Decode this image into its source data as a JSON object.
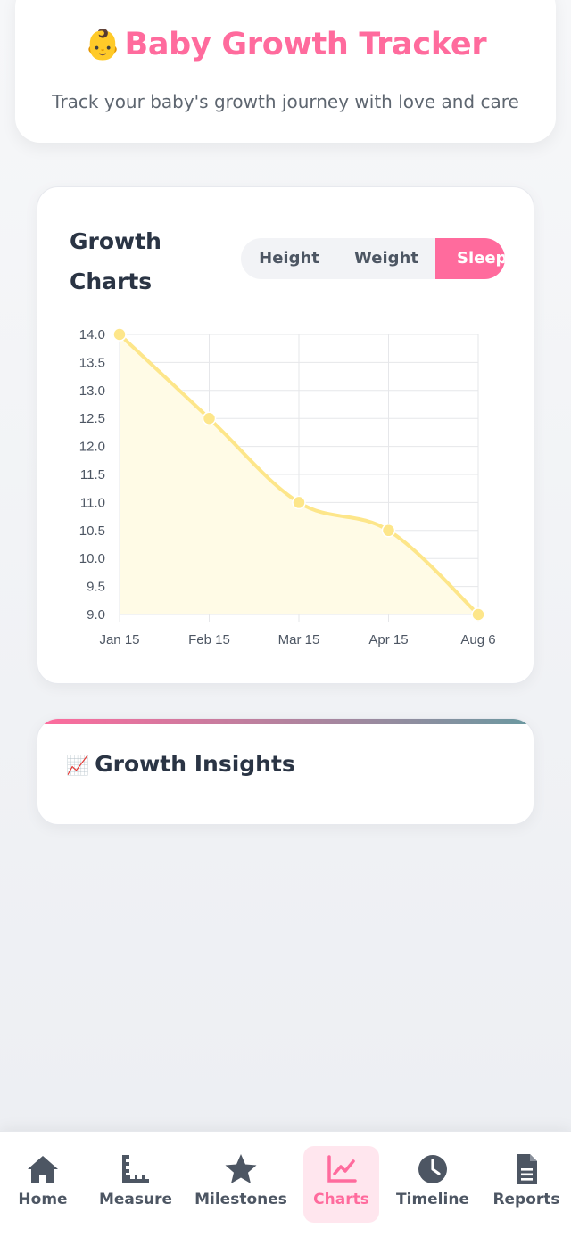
{
  "header": {
    "emoji": "👶",
    "title": "Baby Growth Tracker",
    "subtitle": "Track your baby's growth journey with love and care"
  },
  "charts": {
    "title": "Growth Charts",
    "tabs": [
      {
        "label": "Height",
        "active": false
      },
      {
        "label": "Weight",
        "active": false
      },
      {
        "label": "Sleep",
        "active": true
      }
    ]
  },
  "chart_data": {
    "type": "area",
    "title": "",
    "xlabel": "",
    "ylabel": "",
    "categories": [
      "Jan 15",
      "Feb 15",
      "Mar 15",
      "Apr 15",
      "Aug 6"
    ],
    "values": [
      14.0,
      12.5,
      11.0,
      10.5,
      9.0
    ],
    "ylim": [
      9.0,
      14.0
    ],
    "yticks": [
      "14.0",
      "13.5",
      "13.0",
      "12.5",
      "12.0",
      "11.5",
      "11.0",
      "10.5",
      "10.0",
      "9.5",
      "9.0"
    ],
    "grid": true,
    "legend": "none",
    "line_color": "#fde68a",
    "fill_color": "#fffbe6"
  },
  "insights": {
    "emoji": "📈",
    "title": "Growth Insights"
  },
  "nav": {
    "items": [
      {
        "label": "Home",
        "icon": "home-icon",
        "active": false
      },
      {
        "label": "Measure",
        "icon": "ruler-icon",
        "active": false
      },
      {
        "label": "Milestones",
        "icon": "star-icon",
        "active": false
      },
      {
        "label": "Charts",
        "icon": "chart-line-icon",
        "active": true
      },
      {
        "label": "Timeline",
        "icon": "clock-icon",
        "active": false
      },
      {
        "label": "Reports",
        "icon": "document-icon",
        "active": false
      }
    ]
  },
  "colors": {
    "accent": "#ff6b9d",
    "text_dark": "#2a3444",
    "text_muted": "#5e6670"
  }
}
